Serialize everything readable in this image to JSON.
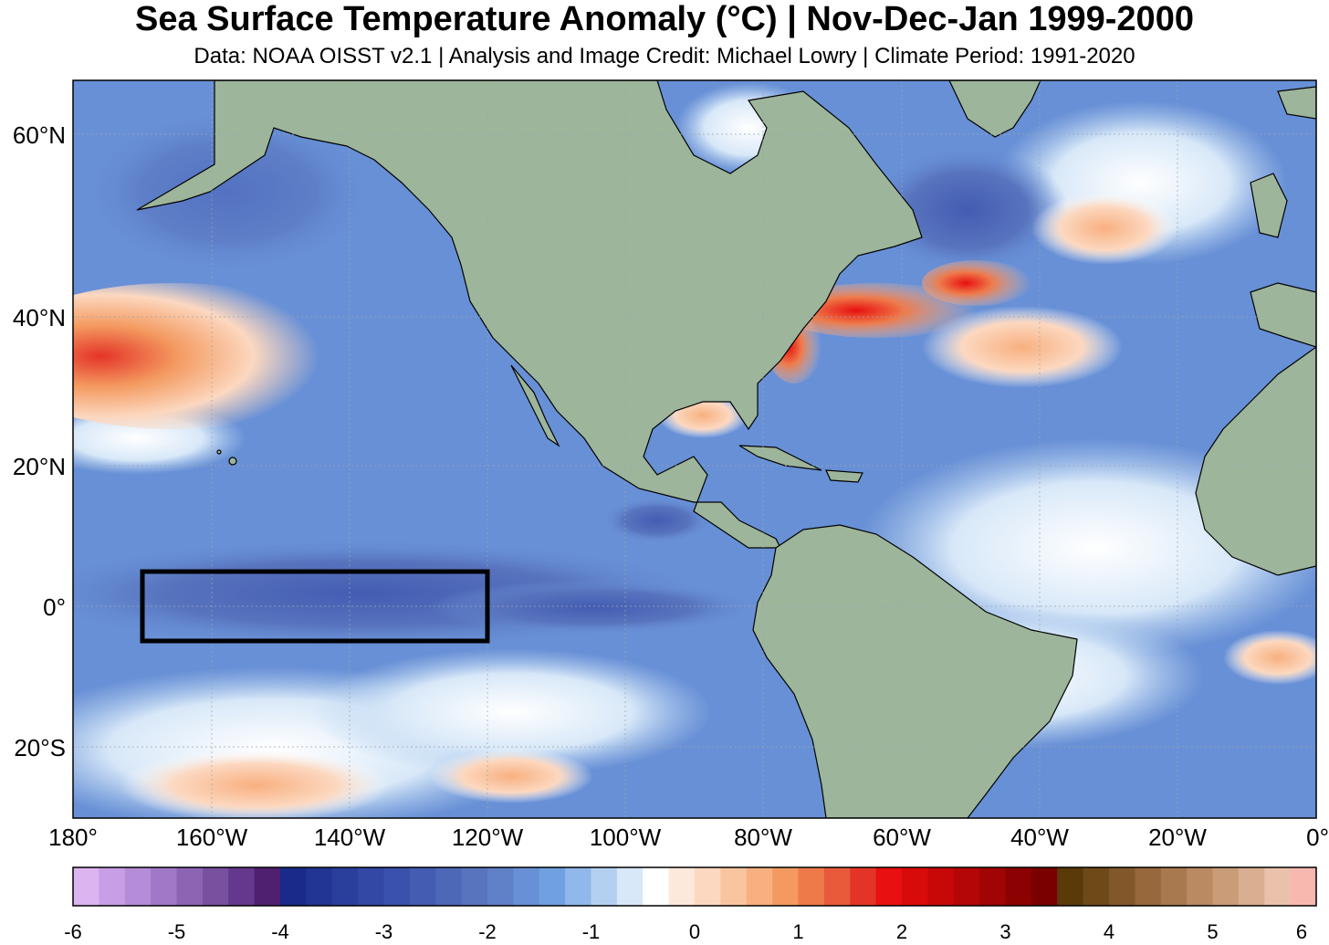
{
  "header": {
    "title": "Sea Surface Temperature Anomaly (°C) | Nov-Dec-Jan 1999-2000",
    "subtitle": "Data: NOAA OISST v2.1 | Analysis and Image Credit: Michael Lowry | Climate Period: 1991-2020"
  },
  "map": {
    "lat_labels": [
      "60°N",
      "40°N",
      "20°N",
      "0°",
      "20°S"
    ],
    "lon_labels": [
      "180°",
      "160°W",
      "140°W",
      "120°W",
      "100°W",
      "80°W",
      "60°W",
      "40°W",
      "20°W",
      "0°"
    ],
    "colors": {
      "land": "#9db59b",
      "box": "#000000"
    }
  },
  "colorbar": {
    "ticks": [
      "-6",
      "-5",
      "-4",
      "-3",
      "-2",
      "-1",
      "0",
      "1",
      "2",
      "3",
      "4",
      "5",
      "6"
    ],
    "colors": [
      "#dcb4f0",
      "#c89ee6",
      "#b48cd8",
      "#a078c8",
      "#8c64b4",
      "#7850a0",
      "#64388c",
      "#502070",
      "#1a2a8a",
      "#223494",
      "#2a3e9c",
      "#3248a4",
      "#3a52ac",
      "#445cb2",
      "#4e68b8",
      "#5874be",
      "#6080c8",
      "#6890d6",
      "#70a0e0",
      "#90b8ea",
      "#b4d0f0",
      "#d8e8f8",
      "#ffffff",
      "#fde8dc",
      "#fcd8c0",
      "#fbc4a0",
      "#f8b080",
      "#f49a60",
      "#ee7a4a",
      "#e85a3a",
      "#e43428",
      "#e81010",
      "#d80a0a",
      "#c80808",
      "#b40606",
      "#a00404",
      "#8c0202",
      "#7a0000",
      "#5a3a08",
      "#6e4a18",
      "#82582a",
      "#96683c",
      "#a8784e",
      "#ba8a62",
      "#ca9c78",
      "#daae90",
      "#eac2ac",
      "#f8b8b0"
    ]
  }
}
